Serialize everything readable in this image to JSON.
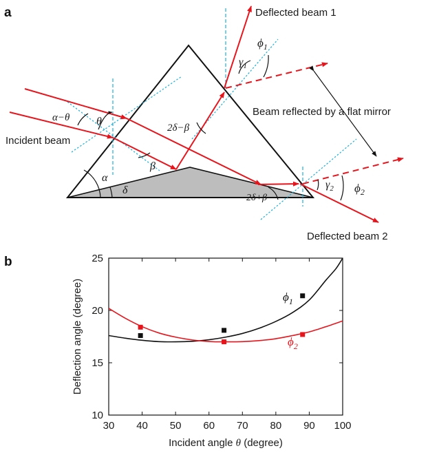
{
  "panel_a": {
    "letter": "a",
    "labels": {
      "incident_beam": "Incident beam",
      "deflected_beam_1": "Deflected beam 1",
      "deflected_beam_2": "Deflected beam 2",
      "reflected_beam": "Beam reflected by a flat mirror"
    },
    "greek": {
      "alpha_minus_theta": "α−θ",
      "theta": "θ",
      "alpha": "α",
      "delta": "δ",
      "beta": "β",
      "two_delta_minus_beta": "2δ−β",
      "two_delta_plus_beta": "2δ+β",
      "gamma1": "γ",
      "gamma1_sub": "1",
      "phi1": "ϕ",
      "phi1_sub": "1",
      "gamma2": "γ",
      "gamma2_sub": "2",
      "phi2": "ϕ",
      "phi2_sub": "2"
    },
    "colors": {
      "beam": "#e8141c",
      "normal": "#1ab0d8",
      "prism_edge": "#111111",
      "wedge_fill": "#bdbdbd"
    }
  },
  "panel_b": {
    "letter": "b"
  },
  "chart_data": {
    "type": "line",
    "xlabel_prefix": "Incident angle ",
    "xlabel_var": "θ",
    "xlabel_suffix": " (degree)",
    "ylabel": "Deflection angle (degree)",
    "xlim": [
      30,
      100
    ],
    "ylim": [
      10,
      25
    ],
    "xticks": [
      30,
      40,
      50,
      60,
      70,
      80,
      90,
      100
    ],
    "yticks": [
      10,
      15,
      20,
      25
    ],
    "grid": false,
    "series": [
      {
        "name": "ϕ",
        "name_sub": "1",
        "color": "#111111",
        "curve_x": [
          30,
          35,
          40,
          45,
          50,
          55,
          60,
          65,
          70,
          75,
          80,
          85,
          90,
          95,
          98,
          100
        ],
        "curve_y": [
          17.6,
          17.35,
          17.15,
          17.02,
          17.0,
          17.05,
          17.2,
          17.45,
          17.8,
          18.3,
          18.95,
          19.8,
          21.0,
          22.9,
          24.0,
          25.0
        ],
        "points_x": [
          39.5,
          64.5,
          88.0
        ],
        "points_y": [
          17.6,
          18.1,
          21.4
        ]
      },
      {
        "name": "ϕ",
        "name_sub": "2",
        "color": "#e8141c",
        "curve_x": [
          30,
          35,
          40,
          45,
          50,
          55,
          60,
          65,
          70,
          75,
          80,
          85,
          90,
          95,
          100
        ],
        "curve_y": [
          20.2,
          19.25,
          18.45,
          17.85,
          17.45,
          17.18,
          17.03,
          17.0,
          17.02,
          17.12,
          17.3,
          17.6,
          17.95,
          18.45,
          19.0
        ],
        "points_x": [
          39.5,
          64.5,
          88.0
        ],
        "points_y": [
          18.4,
          17.0,
          17.7
        ]
      }
    ]
  }
}
